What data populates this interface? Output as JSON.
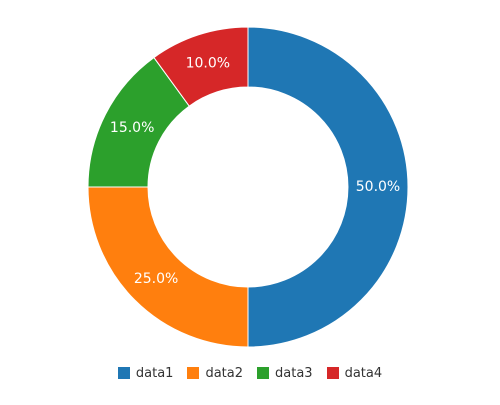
{
  "chart_data": {
    "type": "pie",
    "variant": "donut",
    "title": "",
    "slices": [
      {
        "name": "data1",
        "value": 50.0,
        "label": "50.0%",
        "color": "#1f77b4"
      },
      {
        "name": "data2",
        "value": 25.0,
        "label": "25.0%",
        "color": "#ff7f0e"
      },
      {
        "name": "data3",
        "value": 15.0,
        "label": "15.0%",
        "color": "#2ca02c"
      },
      {
        "name": "data4",
        "value": 10.0,
        "label": "10.0%",
        "color": "#d62728"
      }
    ],
    "legend_position": "bottom"
  }
}
